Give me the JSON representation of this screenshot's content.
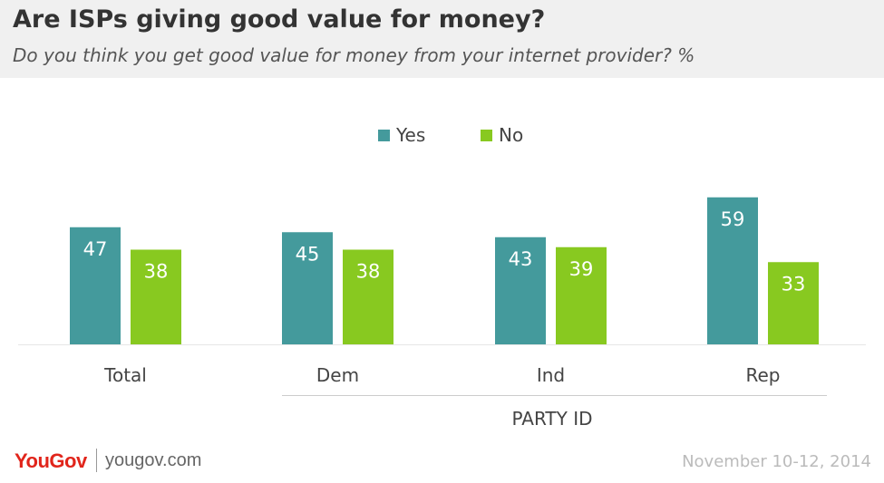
{
  "header": {
    "title": "Are ISPs giving good value for money?",
    "subtitle": "Do you think you get good value for money from your internet provider? %"
  },
  "legend": {
    "placement": "top-center",
    "items": [
      {
        "label": "Yes",
        "color": "#449a9c"
      },
      {
        "label": "No",
        "color": "#88c920"
      }
    ]
  },
  "chart_data": {
    "type": "bar",
    "title": "Are ISPs giving good value for money?",
    "subtitle": "Do you think you get good value for money from your internet provider? %",
    "categories": [
      "Total",
      "Dem",
      "Ind",
      "Rep"
    ],
    "series": [
      {
        "name": "Yes",
        "color": "#449a9c",
        "values": [
          47,
          45,
          43,
          59
        ]
      },
      {
        "name": "No",
        "color": "#88c920",
        "values": [
          38,
          38,
          39,
          33
        ]
      }
    ],
    "group_label": {
      "text": "PARTY ID",
      "categories": [
        "Dem",
        "Ind",
        "Rep"
      ]
    },
    "ylim": [
      0,
      70
    ],
    "grid": false,
    "data_labels": true,
    "legend_placement": "top-center"
  },
  "footer": {
    "logo_text": "YouGov",
    "url": "yougov.com",
    "date": "November 10-12, 2014"
  }
}
